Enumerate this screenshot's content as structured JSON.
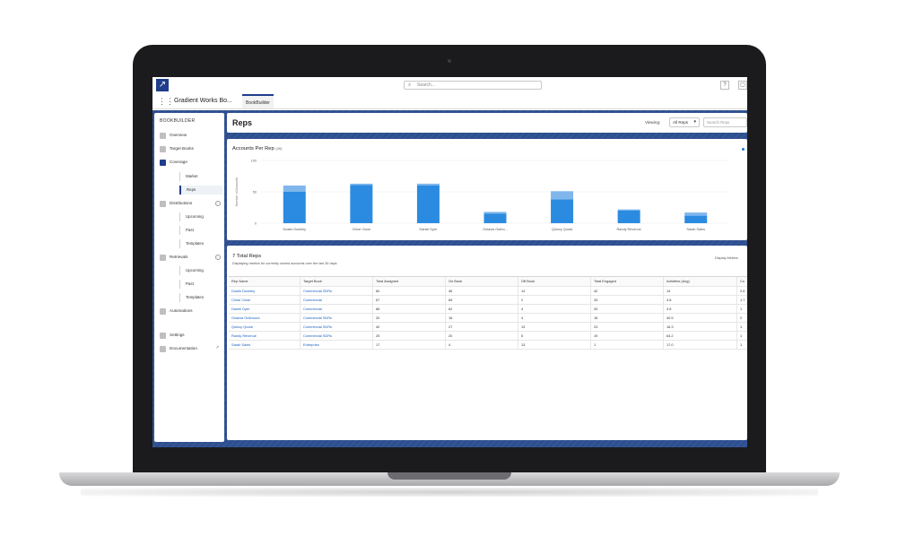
{
  "header": {
    "search_placeholder": "Search...",
    "app_name": "Gradient Works Bo...",
    "tab_label": "BookBuilder",
    "help_btn": "?",
    "user_btn": "▢"
  },
  "sidebar": {
    "title": "BOOKBUILDER",
    "items": [
      {
        "label": "Overview"
      },
      {
        "label": "Target Books"
      },
      {
        "label": "Coverage"
      },
      {
        "label": "Distributions"
      },
      {
        "label": "Retrievals"
      },
      {
        "label": "Automations"
      },
      {
        "label": "Settings"
      },
      {
        "label": "Documentation"
      }
    ],
    "coverage_subs": [
      {
        "label": "Market"
      },
      {
        "label": "Reps"
      }
    ],
    "distribution_subs": [
      {
        "label": "Upcoming"
      },
      {
        "label": "Past"
      },
      {
        "label": "Templates"
      }
    ],
    "retrieval_subs": [
      {
        "label": "Upcoming"
      },
      {
        "label": "Past"
      },
      {
        "label": "Templates"
      }
    ]
  },
  "main": {
    "title": "Reps",
    "viewing_label": "Viewing:",
    "viewing_value": "All Reps",
    "search_placeholder": "Search Reps"
  },
  "chart_data": {
    "type": "bar",
    "title": "Accounts Per Rep",
    "title_count": "(49)",
    "ylabel": "Number of Accounts",
    "ylim": [
      0,
      100
    ],
    "yticks": [
      0,
      50,
      100
    ],
    "categories": [
      "Dustin Dunkley",
      "Chloe Close",
      "Daniel Dyer",
      "Octavia Outbo...",
      "Quincy Quota",
      "Randy Revenue",
      "Sarah Sales"
    ],
    "series": [
      {
        "values": [
          50,
          61,
          60,
          15,
          38,
          20,
          12
        ],
        "color": "#2b8be0"
      },
      {
        "values": [
          10,
          2,
          3,
          3,
          13,
          2,
          5
        ],
        "color": "#7fb6ec"
      }
    ]
  },
  "table": {
    "title": "7 Total Reps",
    "subtitle": "Displaying metrics for currently owned accounts over the last 30 days",
    "display_label": "Display Metrics",
    "columns": [
      "Rep Name",
      "Target Book",
      "Total Assigned",
      "On Book",
      "Off Book",
      "Total Engaged",
      "Activities (Avg)",
      "Co"
    ],
    "rows": [
      [
        "Dustin Dunkley",
        "Commercial SDRs",
        "60",
        "46",
        "14",
        "42",
        "14",
        "2.6"
      ],
      [
        "Chloe Close",
        "Commercial",
        "67",
        "65",
        "2",
        "33",
        "3.8",
        "1.7"
      ],
      [
        "Daniel Dyer",
        "Commercial",
        "66",
        "62",
        "4",
        "33",
        "3.8",
        "1"
      ],
      [
        "Octavia Outbound",
        "Commercial SDRs",
        "20",
        "16",
        "4",
        "16",
        "40.5",
        "2"
      ],
      [
        "Quincy Quota",
        "Commercial SDRs",
        "40",
        "27",
        "13",
        "23",
        "16.3",
        "1"
      ],
      [
        "Randy Revenue",
        "Commercial SDRs",
        "25",
        "20",
        "5",
        "19",
        "64.2",
        "1"
      ],
      [
        "Sarah Sales",
        "Enterprise",
        "17",
        "4",
        "13",
        "1",
        "17.0",
        "1"
      ]
    ]
  }
}
